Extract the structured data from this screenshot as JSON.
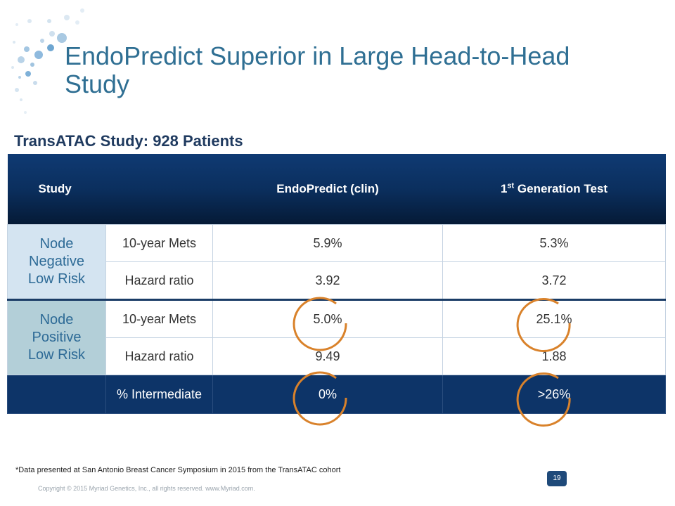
{
  "slide": {
    "title_line1": "EndoPredict Superior in Large Head-to-Head",
    "title_line2": "Study",
    "subtitle": "TransATAC Study: 928 Patients"
  },
  "table": {
    "header": {
      "study": "Study",
      "endopredict": "EndoPredict (clin)",
      "first_gen_prefix": "1",
      "first_gen_sup": "st",
      "first_gen_suffix": " Generation Test"
    },
    "groups": [
      {
        "label_lines": [
          "Node",
          "Negative",
          "Low Risk"
        ],
        "rows": [
          {
            "metric": "10-year Mets",
            "endopredict": "5.9%",
            "first_gen": "5.3%"
          },
          {
            "metric": "Hazard ratio",
            "endopredict": "3.92",
            "first_gen": "3.72"
          }
        ]
      },
      {
        "label_lines": [
          "Node",
          "Positive",
          "Low Risk"
        ],
        "rows": [
          {
            "metric": "10-year Mets",
            "endopredict": "5.0%",
            "first_gen": "25.1%"
          },
          {
            "metric": "Hazard ratio",
            "endopredict": "9.49",
            "first_gen": "1.88"
          }
        ]
      }
    ],
    "total_row": {
      "metric": "% Intermediate",
      "endopredict": "0%",
      "first_gen": ">26%"
    }
  },
  "footnote": "*Data presented at San Antonio Breast Cancer Symposium in 2015 from the TransATAC cohort",
  "page_number": "19",
  "copyright": "Copyright © 2015 Myriad Genetics, Inc., all rights reserved.  www.Myriad.com.",
  "colors": {
    "title": "#2f6f93",
    "header_bg": "#0b2f5e",
    "highlight_circle": "#d9822b",
    "group_negative_bg": "#d4e4f1",
    "group_positive_bg": "#b3cfd8"
  }
}
